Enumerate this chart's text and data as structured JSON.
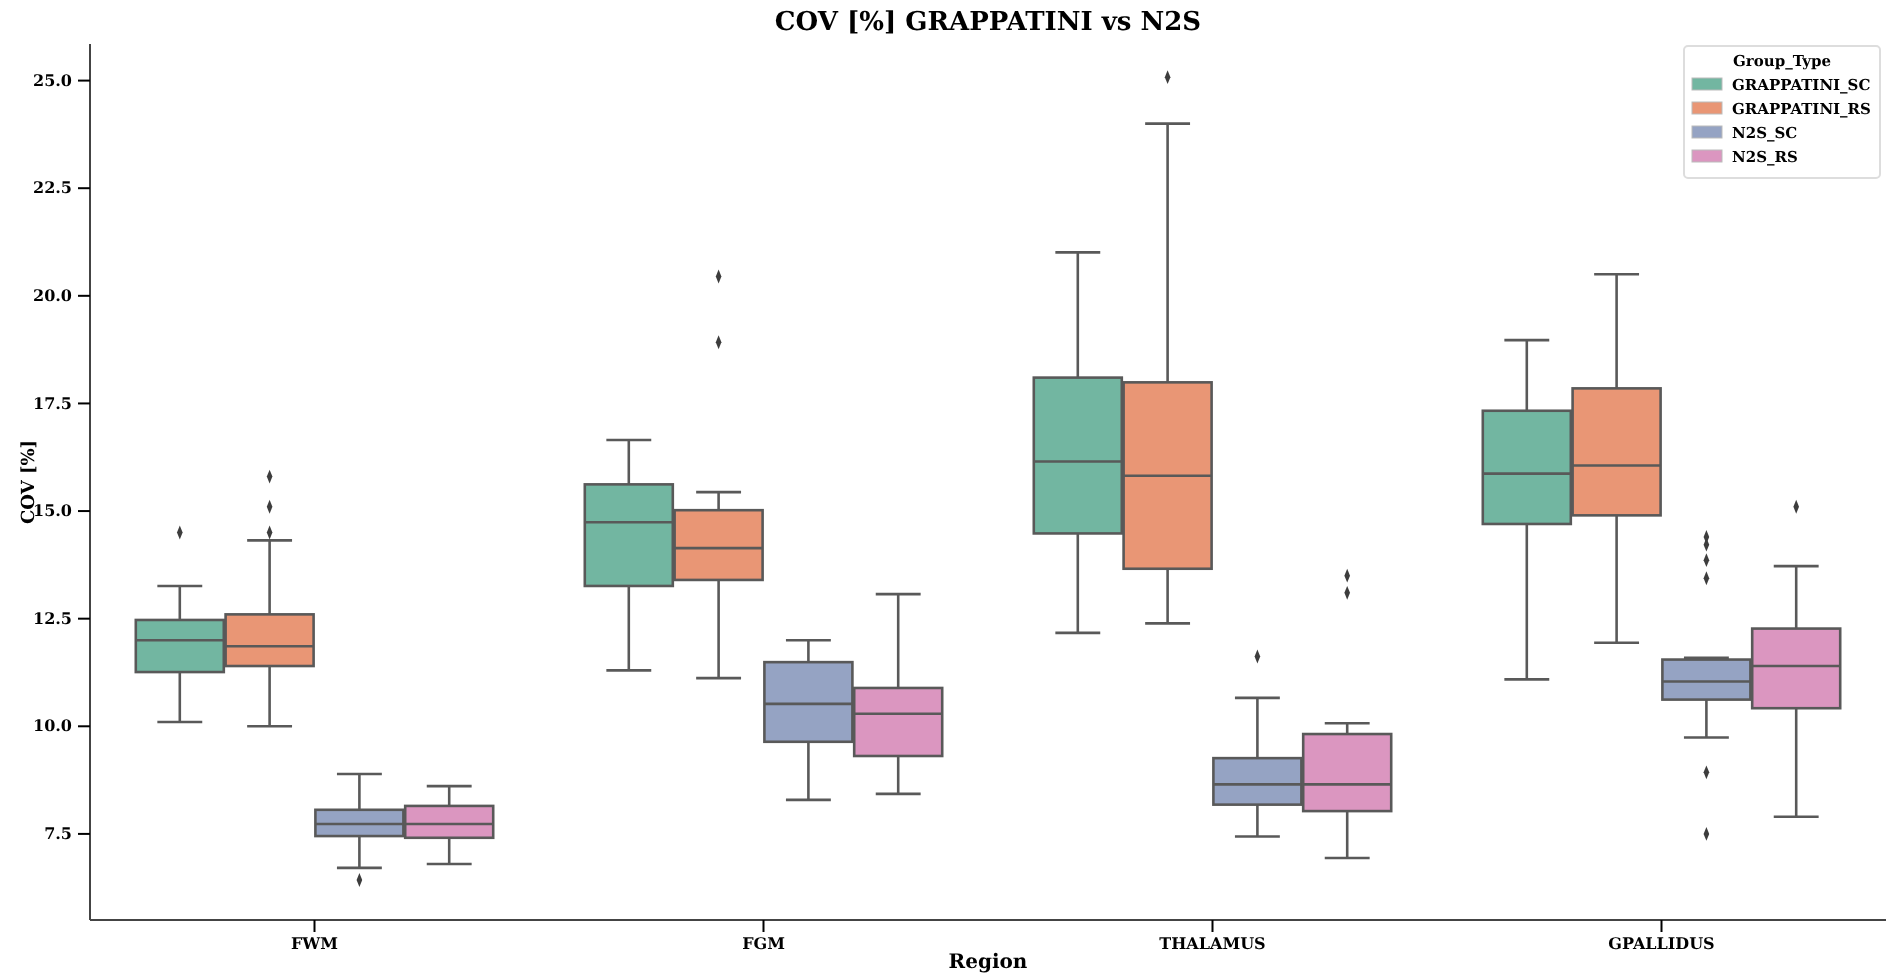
{
  "chart_data": {
    "type": "box",
    "title": "COV [%] GRAPPATINI vs N2S",
    "xlabel": "Region",
    "ylabel": "COV [%]",
    "legend_title": "Group_Type",
    "legend": "top right",
    "marker": "diamond",
    "categories": [
      "FWM",
      "FGM",
      "THALAMUS",
      "GPALLIDUS"
    ],
    "ylim": [
      5.5,
      25.85
    ],
    "yticks": [
      {
        "value": 7.5,
        "label": "7.5"
      },
      {
        "value": 10,
        "label": "10.0"
      },
      {
        "value": 12.5,
        "label": "12.5"
      },
      {
        "value": 15,
        "label": "15.0"
      },
      {
        "value": 17.5,
        "label": "17.5"
      },
      {
        "value": 20,
        "label": "20.0"
      },
      {
        "value": 22.5,
        "label": "22.5"
      },
      {
        "value": 25,
        "label": "25.0"
      }
    ],
    "series": [
      {
        "name": "GRAPPATINI_SC",
        "color": "#72b6a1",
        "boxes": [
          {
            "low": 10.1,
            "q1": 11.26,
            "median": 12.0,
            "q3": 12.47,
            "high": 13.26,
            "outliers": [
              14.5
            ]
          },
          {
            "low": 11.3,
            "q1": 13.26,
            "median": 14.74,
            "q3": 15.62,
            "high": 16.65
          },
          {
            "low": 12.17,
            "q1": 14.48,
            "median": 16.15,
            "q3": 18.1,
            "high": 21.01
          },
          {
            "low": 11.09,
            "q1": 14.7,
            "median": 15.87,
            "q3": 17.33,
            "high": 18.97
          }
        ]
      },
      {
        "name": "GRAPPATINI_RS",
        "color": "#e99675",
        "boxes": [
          {
            "low": 10.0,
            "q1": 11.4,
            "median": 11.86,
            "q3": 12.6,
            "high": 14.32,
            "outliers": [
              15.8,
              15.1,
              14.5
            ]
          },
          {
            "low": 11.12,
            "q1": 13.4,
            "median": 14.14,
            "q3": 15.02,
            "high": 15.44,
            "outliers": [
              20.45,
              18.92
            ]
          },
          {
            "low": 12.39,
            "q1": 13.66,
            "median": 15.82,
            "q3": 17.99,
            "high": 24.0,
            "outliers": [
              25.08
            ]
          },
          {
            "low": 11.94,
            "q1": 14.9,
            "median": 16.06,
            "q3": 17.85,
            "high": 20.5
          }
        ]
      },
      {
        "name": "N2S_SC",
        "color": "#95a3c3",
        "boxes": [
          {
            "low": 6.71,
            "q1": 7.45,
            "median": 7.73,
            "q3": 8.06,
            "high": 8.89,
            "outliers": [
              6.43
            ]
          },
          {
            "low": 8.29,
            "q1": 9.64,
            "median": 10.52,
            "q3": 11.49,
            "high": 12.0
          },
          {
            "low": 7.44,
            "q1": 8.18,
            "median": 8.65,
            "q3": 9.26,
            "high": 10.66,
            "outliers": [
              11.62
            ]
          },
          {
            "low": 9.74,
            "q1": 10.62,
            "median": 11.04,
            "q3": 11.55,
            "high": 11.59,
            "outliers": [
              14.4,
              14.22,
              13.86,
              13.44,
              8.93,
              7.5
            ]
          }
        ]
      },
      {
        "name": "N2S_RS",
        "color": "#db96c0",
        "boxes": [
          {
            "low": 6.8,
            "q1": 7.41,
            "median": 7.73,
            "q3": 8.15,
            "high": 8.61
          },
          {
            "low": 8.43,
            "q1": 9.31,
            "median": 10.29,
            "q3": 10.89,
            "high": 13.07
          },
          {
            "low": 6.94,
            "q1": 8.03,
            "median": 8.65,
            "q3": 9.82,
            "high": 10.07,
            "outliers": [
              13.5,
              13.1
            ]
          },
          {
            "low": 7.9,
            "q1": 10.42,
            "median": 11.4,
            "q3": 12.27,
            "high": 13.72,
            "outliers": [
              15.1
            ]
          }
        ]
      }
    ]
  }
}
